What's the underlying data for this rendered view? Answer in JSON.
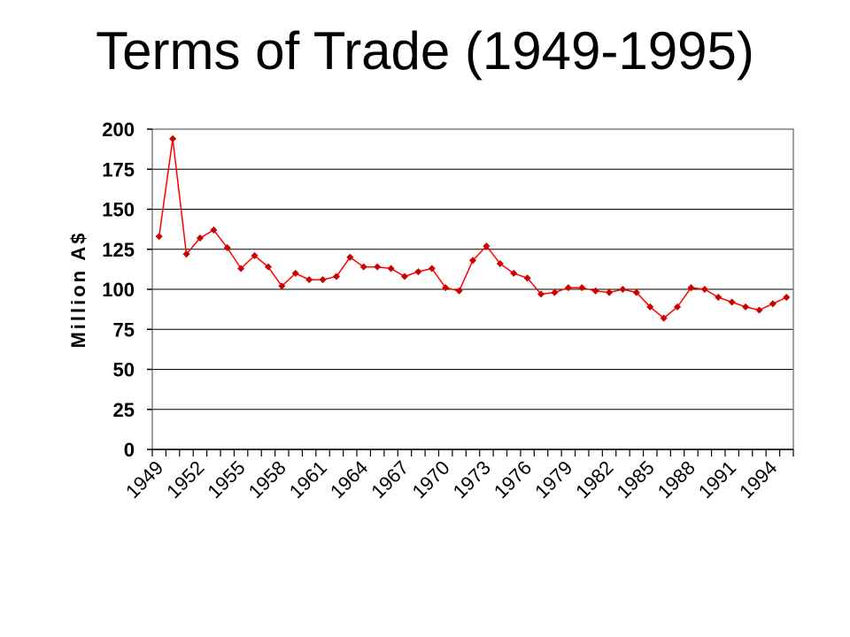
{
  "slide": {
    "title": "Terms of Trade (1949-1995)"
  },
  "chart_data": {
    "type": "line",
    "title": "Terms of Trade (1949-1995)",
    "xlabel": "",
    "ylabel": "Million A$",
    "ylim": [
      0,
      200
    ],
    "yticks": [
      0,
      25,
      50,
      75,
      100,
      125,
      150,
      175,
      200
    ],
    "x_tick_labels": [
      "1949",
      "1952",
      "1955",
      "1958",
      "1961",
      "1964",
      "1967",
      "1970",
      "1973",
      "1976",
      "1979",
      "1982",
      "1985",
      "1988",
      "1991",
      "1994"
    ],
    "grid": true,
    "legend": "none",
    "series_color": "#ff0000",
    "marker_color": "#cc0000",
    "x": [
      1949,
      1950,
      1951,
      1952,
      1953,
      1954,
      1955,
      1956,
      1957,
      1958,
      1959,
      1960,
      1961,
      1962,
      1963,
      1964,
      1965,
      1966,
      1967,
      1968,
      1969,
      1970,
      1971,
      1972,
      1973,
      1974,
      1975,
      1976,
      1977,
      1978,
      1979,
      1980,
      1981,
      1982,
      1983,
      1984,
      1985,
      1986,
      1987,
      1988,
      1989,
      1990,
      1991,
      1992,
      1993,
      1994,
      1995
    ],
    "series": [
      {
        "values": [
          133,
          194,
          122,
          132,
          137,
          126,
          113,
          121,
          114,
          102,
          110,
          106,
          106,
          108,
          120,
          114,
          114,
          113,
          108,
          111,
          113,
          101,
          99,
          118,
          127,
          116,
          110,
          107,
          97,
          98,
          101,
          101,
          99,
          98,
          100,
          98,
          89,
          82,
          89,
          101,
          100,
          95,
          92,
          89,
          87,
          91,
          95
        ]
      }
    ]
  }
}
